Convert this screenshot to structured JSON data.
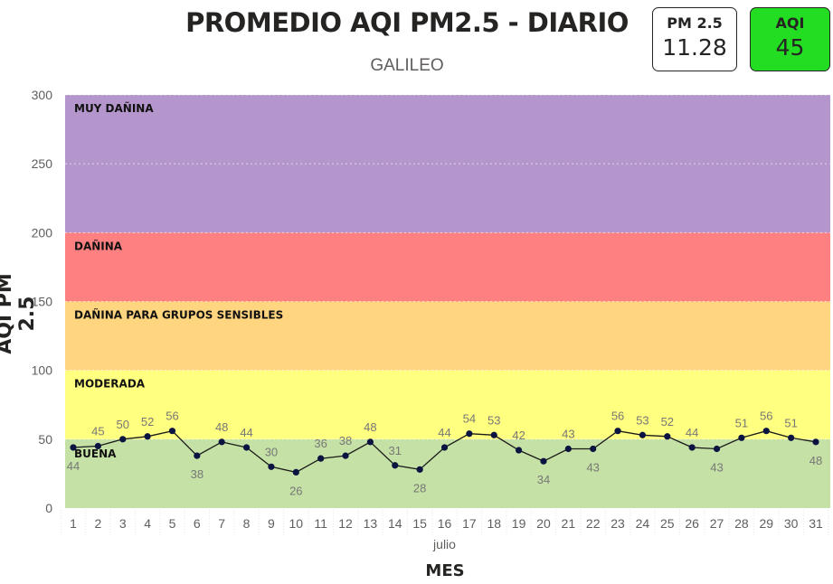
{
  "header": {
    "title": "PROMEDIO AQI PM2.5 - DIARIO",
    "subtitle": "GALILEO"
  },
  "cards": {
    "pm": {
      "label": "PM 2.5",
      "value": "11.28"
    },
    "aqi": {
      "label": "AQI",
      "value": "45",
      "color": "#22dd22"
    }
  },
  "chart_data": {
    "type": "line",
    "xlabel": "MES",
    "ylabel": "AQI PM 2.5",
    "x_group_label": "julio",
    "x": [
      "1",
      "2",
      "3",
      "4",
      "5",
      "6",
      "7",
      "8",
      "9",
      "10",
      "11",
      "12",
      "13",
      "14",
      "15",
      "16",
      "17",
      "18",
      "19",
      "20",
      "21",
      "22",
      "23",
      "24",
      "25",
      "26",
      "27",
      "28",
      "29",
      "30",
      "31"
    ],
    "values": [
      44,
      45,
      50,
      52,
      56,
      38,
      48,
      44,
      30,
      26,
      36,
      38,
      48,
      31,
      28,
      44,
      54,
      53,
      42,
      34,
      43,
      43,
      56,
      53,
      52,
      44,
      43,
      51,
      56,
      51,
      48
    ],
    "ylim": [
      0,
      300
    ],
    "yticks": [
      "0",
      "50",
      "100",
      "150",
      "200",
      "250",
      "300"
    ],
    "line_color": "#1a1a1a",
    "marker_color": "#0b1340",
    "bands": [
      {
        "label": "BUENA",
        "from": 0,
        "to": 50,
        "color": "#c5e1a5"
      },
      {
        "label": "MODERADA",
        "from": 50,
        "to": 100,
        "color": "#ffff80"
      },
      {
        "label": "DAÑINA PARA GRUPOS SENSIBLES",
        "from": 100,
        "to": 150,
        "color": "#ffd580"
      },
      {
        "label": "DAÑINA",
        "from": 150,
        "to": 200,
        "color": "#ff8080"
      },
      {
        "label": "MUY DAÑINA",
        "from": 200,
        "to": 300,
        "color": "#b496cc"
      }
    ]
  }
}
